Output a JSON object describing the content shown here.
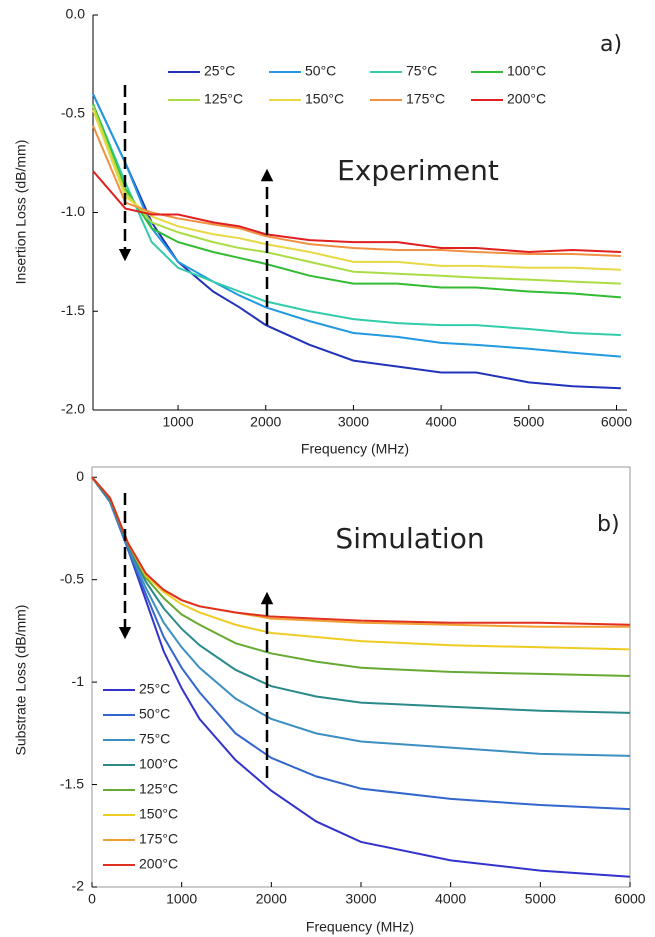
{
  "chart_data": [
    {
      "type": "line",
      "xlabel": "Frequency (MHz)",
      "ylabel": "Insertion Loss (dB/mm)",
      "annotations": [
        "a)",
        "Experiment"
      ],
      "x": [
        30,
        400,
        700,
        1000,
        1400,
        1700,
        2000,
        2500,
        3000,
        3500,
        4000,
        4400,
        5000,
        5500,
        6050
      ],
      "xlim": [
        30,
        6120
      ],
      "xticks": [
        1000,
        2000,
        3000,
        4000,
        5000,
        6000
      ],
      "ylim": [
        -2,
        0
      ],
      "yticks": [
        {
          "value": 0,
          "label": "0.0"
        },
        -0.5,
        {
          "value": -1,
          "label": "-1.0"
        },
        -1.5,
        {
          "value": -2,
          "label": "-2.0"
        }
      ],
      "legend": "upper center",
      "series": [
        {
          "name": "25°C",
          "color": "#2233bb",
          "values": [
            -0.4,
            -0.75,
            -1.05,
            -1.25,
            -1.4,
            -1.48,
            -1.57,
            -1.67,
            -1.75,
            -1.78,
            -1.81,
            -1.81,
            -1.86,
            -1.88,
            -1.89
          ]
        },
        {
          "name": "50°C",
          "color": "#2299e0",
          "values": [
            -0.4,
            -0.75,
            -1.08,
            -1.25,
            -1.35,
            -1.42,
            -1.48,
            -1.55,
            -1.61,
            -1.63,
            -1.66,
            -1.67,
            -1.69,
            -1.71,
            -1.73
          ]
        },
        {
          "name": "75°C",
          "color": "#33ccaa",
          "values": [
            -0.45,
            -0.85,
            -1.15,
            -1.28,
            -1.35,
            -1.4,
            -1.45,
            -1.5,
            -1.54,
            -1.56,
            -1.57,
            -1.57,
            -1.59,
            -1.61,
            -1.62
          ]
        },
        {
          "name": "100°C",
          "color": "#33bb33",
          "values": [
            -0.45,
            -0.88,
            -1.08,
            -1.15,
            -1.2,
            -1.23,
            -1.26,
            -1.32,
            -1.36,
            -1.36,
            -1.38,
            -1.38,
            -1.4,
            -1.41,
            -1.43
          ]
        },
        {
          "name": "125°C",
          "color": "#aadd44",
          "values": [
            -0.46,
            -0.9,
            -1.05,
            -1.1,
            -1.15,
            -1.18,
            -1.2,
            -1.25,
            -1.3,
            -1.31,
            -1.32,
            -1.33,
            -1.34,
            -1.35,
            -1.36
          ]
        },
        {
          "name": "150°C",
          "color": "#e8d844",
          "values": [
            -0.48,
            -0.92,
            -1.02,
            -1.07,
            -1.11,
            -1.13,
            -1.16,
            -1.2,
            -1.25,
            -1.25,
            -1.27,
            -1.27,
            -1.28,
            -1.28,
            -1.29
          ]
        },
        {
          "name": "175°C",
          "color": "#f09040",
          "values": [
            -0.56,
            -0.95,
            -1.0,
            -1.03,
            -1.06,
            -1.08,
            -1.12,
            -1.16,
            -1.18,
            -1.19,
            -1.19,
            -1.2,
            -1.21,
            -1.21,
            -1.22
          ]
        },
        {
          "name": "200°C",
          "color": "#e02020",
          "values": [
            -0.79,
            -0.98,
            -1.01,
            -1.01,
            -1.05,
            -1.07,
            -1.11,
            -1.14,
            -1.15,
            -1.15,
            -1.18,
            -1.18,
            -1.2,
            -1.19,
            -1.2
          ]
        }
      ]
    },
    {
      "type": "line",
      "xlabel": "Frequency (MHz)",
      "ylabel": "Substrate Loss (dB/mm)",
      "annotations": [
        "b)",
        "Simulation"
      ],
      "x": [
        0,
        200,
        400,
        600,
        800,
        1000,
        1200,
        1600,
        2000,
        2500,
        3000,
        4000,
        5000,
        6000
      ],
      "xlim": [
        0,
        6000
      ],
      "xticks": [
        0,
        1000,
        2000,
        3000,
        4000,
        5000,
        6000
      ],
      "ylim": [
        -2,
        0.05
      ],
      "yticks": [
        0,
        -0.5,
        -1,
        -1.5,
        -2
      ],
      "legend": "lower left",
      "series": [
        {
          "name": "25°C",
          "color": "#3333cc",
          "values": [
            0,
            -0.12,
            -0.35,
            -0.6,
            -0.85,
            -1.03,
            -1.18,
            -1.38,
            -1.53,
            -1.68,
            -1.78,
            -1.87,
            -1.92,
            -1.95
          ]
        },
        {
          "name": "50°C",
          "color": "#3366cc",
          "values": [
            0,
            -0.12,
            -0.35,
            -0.57,
            -0.78,
            -0.93,
            -1.05,
            -1.25,
            -1.37,
            -1.46,
            -1.52,
            -1.57,
            -1.6,
            -1.62
          ]
        },
        {
          "name": "75°C",
          "color": "#3c8fc0",
          "values": [
            0,
            -0.12,
            -0.34,
            -0.54,
            -0.71,
            -0.83,
            -0.93,
            -1.08,
            -1.18,
            -1.25,
            -1.29,
            -1.32,
            -1.35,
            -1.36
          ]
        },
        {
          "name": "100°C",
          "color": "#2a8a8a",
          "values": [
            0,
            -0.11,
            -0.33,
            -0.51,
            -0.64,
            -0.74,
            -0.82,
            -0.94,
            -1.02,
            -1.07,
            -1.1,
            -1.12,
            -1.14,
            -1.15
          ]
        },
        {
          "name": "125°C",
          "color": "#66aa33",
          "values": [
            0,
            -0.1,
            -0.32,
            -0.49,
            -0.59,
            -0.67,
            -0.72,
            -0.81,
            -0.86,
            -0.9,
            -0.93,
            -0.95,
            -0.96,
            -0.97
          ]
        },
        {
          "name": "150°C",
          "color": "#eecc22",
          "values": [
            0,
            -0.1,
            -0.32,
            -0.48,
            -0.56,
            -0.62,
            -0.66,
            -0.72,
            -0.76,
            -0.78,
            -0.8,
            -0.82,
            -0.83,
            -0.84
          ]
        },
        {
          "name": "175°C",
          "color": "#f0a030",
          "values": [
            0,
            -0.1,
            -0.32,
            -0.47,
            -0.55,
            -0.6,
            -0.63,
            -0.66,
            -0.69,
            -0.7,
            -0.71,
            -0.72,
            -0.73,
            -0.73
          ]
        },
        {
          "name": "200°C",
          "color": "#e03020",
          "values": [
            0,
            -0.1,
            -0.32,
            -0.47,
            -0.55,
            -0.6,
            -0.63,
            -0.66,
            -0.68,
            -0.69,
            -0.7,
            -0.71,
            -0.71,
            -0.72
          ]
        }
      ]
    }
  ]
}
